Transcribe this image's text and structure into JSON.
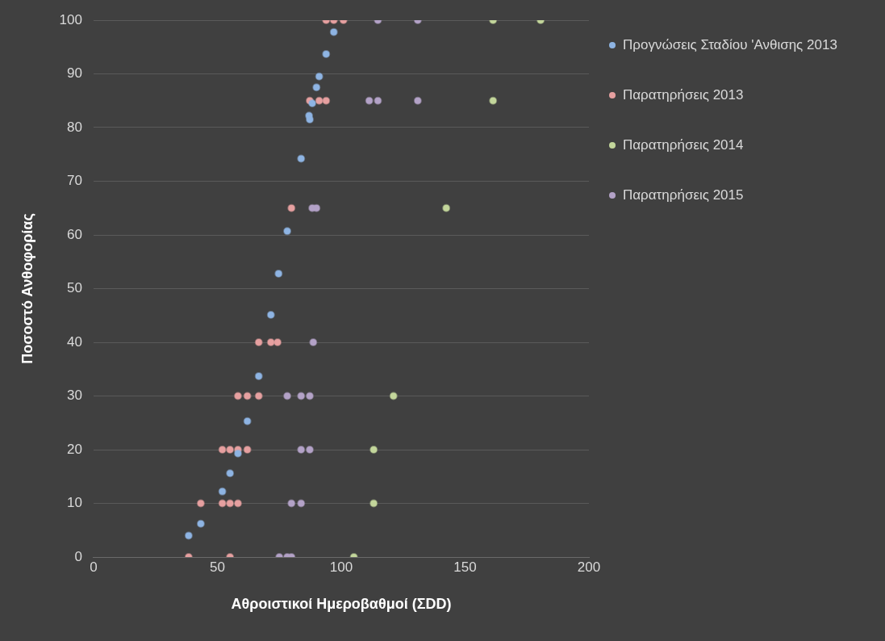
{
  "chart_data": {
    "type": "scatter",
    "xlabel": "Αθροιστικοί Ημεροβαθμοί (ΣDD)",
    "ylabel": "Ποσοστό Ανθοφορίας",
    "xlim": [
      0,
      200
    ],
    "xticks": [
      0,
      50,
      100,
      150,
      200
    ],
    "ylim": [
      0,
      100
    ],
    "yticks": [
      0,
      10,
      20,
      30,
      40,
      50,
      60,
      70,
      80,
      90,
      100
    ],
    "grid": "y",
    "legend": "right",
    "marker": "circle",
    "series": [
      {
        "name": "Προγνώσεις Σταδίου 'Ανθισης 2013",
        "color": "#8eb4e3",
        "x": [
          38.4,
          43.3,
          52,
          55.1,
          58.3,
          62.1,
          66.7,
          71.6,
          74.7,
          78.2,
          83.8,
          87,
          87.3,
          88.3,
          90,
          91.1,
          93.9,
          97
        ],
        "values": [
          4,
          6.2,
          12.2,
          15.6,
          19.3,
          25.3,
          33.7,
          45.1,
          52.8,
          60.7,
          74.2,
          82.2,
          81.5,
          84.5,
          87.5,
          89.5,
          93.7,
          97.8
        ]
      },
      {
        "name": "Παρατηρήσεις 2013",
        "color": "#e6a0a0",
        "x": [
          38.4,
          55.1,
          43.3,
          52,
          55.1,
          58.3,
          52,
          55.1,
          58.3,
          62.1,
          58.3,
          62.1,
          66.7,
          66.7,
          71.6,
          74.3,
          79.9,
          87.3,
          91.1,
          93.9,
          93.9,
          97,
          100.9
        ],
        "values": [
          0,
          0,
          10,
          10,
          10,
          10,
          20,
          20,
          20,
          20,
          30,
          30,
          30,
          40,
          40,
          40,
          65,
          85,
          85,
          85,
          100,
          100,
          100
        ]
      },
      {
        "name": "Παρατηρήσεις 2014",
        "color": "#c3d69b",
        "x": [
          105.1,
          113.1,
          113.1,
          121.1,
          142.4,
          161.3,
          161.3,
          180.5
        ],
        "values": [
          0,
          10,
          20,
          30,
          65,
          85,
          100,
          100
        ]
      },
      {
        "name": "Παρατηρήσεις 2015",
        "color": "#b3a2c7",
        "x": [
          75,
          78.2,
          79.9,
          79.9,
          83.8,
          83.8,
          87.3,
          78.2,
          83.8,
          87.3,
          88.7,
          88.3,
          90,
          111.3,
          114.8,
          130.9,
          114.8,
          130.9
        ],
        "values": [
          0,
          0,
          0,
          10,
          10,
          20,
          20,
          30,
          30,
          30,
          40,
          65,
          65,
          85,
          85,
          85,
          100,
          100
        ]
      }
    ]
  }
}
